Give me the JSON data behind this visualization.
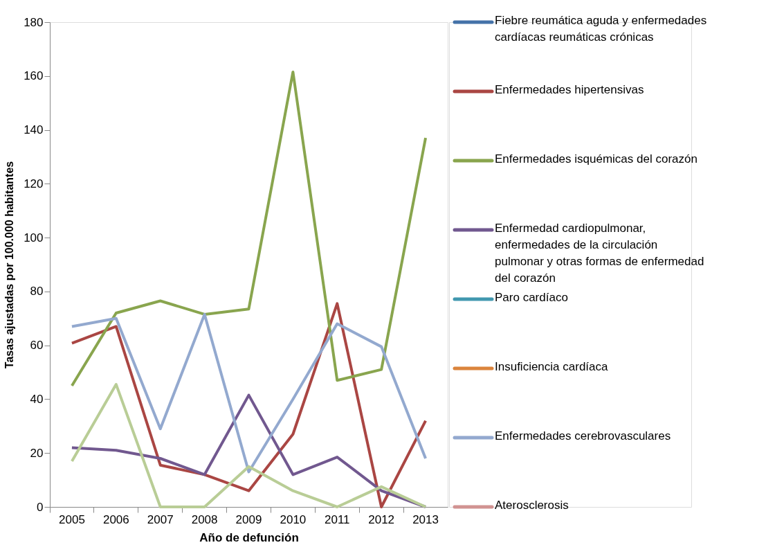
{
  "chart_data": {
    "type": "line",
    "xlabel": "Año de defunción",
    "ylabel": "Tasas ajustadas por 100.000 habitantes",
    "categories": [
      "2005",
      "2006",
      "2007",
      "2008",
      "2009",
      "2010",
      "2011",
      "2012",
      "2013"
    ],
    "ylim": [
      0,
      180
    ],
    "yticks": [
      0,
      20,
      40,
      60,
      80,
      100,
      120,
      140,
      160,
      180
    ],
    "grid": false,
    "legend": "right",
    "line_style": "solid",
    "marker": "none",
    "series": [
      {
        "name": "Fiebre reumática aguda y enfermedades cardíacas reumáticas crónicas",
        "color": "#4472a8",
        "values": [
          null,
          null,
          null,
          null,
          null,
          null,
          null,
          null,
          null
        ]
      },
      {
        "name": "Enfermedades hipertensivas",
        "color": "#aa4643",
        "values": [
          60.8,
          67,
          15.5,
          12,
          6,
          27,
          75.5,
          0,
          32
        ]
      },
      {
        "name": "Enfermedades isquémicas del corazón",
        "color": "#89a54e",
        "values": [
          45,
          72,
          76.5,
          71.5,
          73.5,
          161.5,
          47,
          51,
          137
        ]
      },
      {
        "name": "Enfermedad cardiopulmonar, enfermedades de la circulación pulmonar y otras formas de enfermedad del corazón",
        "color": "#71588f",
        "values": [
          22,
          21,
          18,
          12,
          41.5,
          12,
          18.5,
          6,
          0
        ]
      },
      {
        "name": "Paro cardíaco",
        "color": "#4198af",
        "values": [
          null,
          null,
          null,
          null,
          null,
          null,
          null,
          null,
          null
        ]
      },
      {
        "name": "Insuficiencia cardíaca",
        "color": "#db843d",
        "values": [
          null,
          null,
          null,
          null,
          null,
          null,
          null,
          null,
          null
        ]
      },
      {
        "name": "Enfermedades cerebrovasculares",
        "color": "#93a9cf",
        "values": [
          67,
          70,
          29,
          71.5,
          13,
          40,
          68,
          59.5,
          18
        ]
      },
      {
        "name": "Aterosclerosis",
        "color": "#d19392",
        "values": [
          null,
          null,
          null,
          null,
          null,
          null,
          null,
          null,
          null
        ]
      },
      {
        "color": "#b9cd96",
        "values": [
          17,
          45.5,
          0,
          0,
          15,
          6,
          0,
          7.5,
          0
        ]
      }
    ]
  }
}
